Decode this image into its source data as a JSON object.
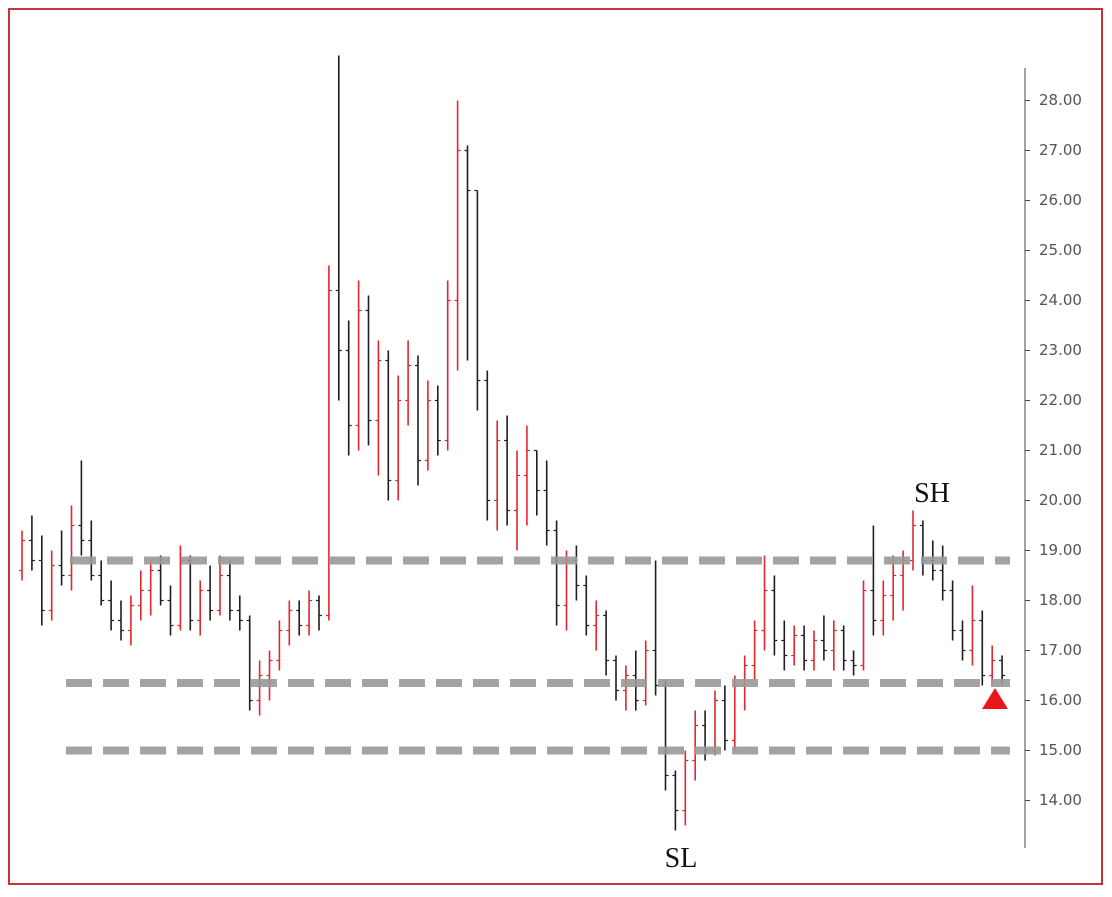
{
  "chart_data": {
    "type": "ohlc",
    "open": [
      18.6,
      19.2,
      18.8,
      17.8,
      18.7,
      18.5,
      19.5,
      19.2,
      18.5,
      18.0,
      17.6,
      17.4,
      17.9,
      18.2,
      18.6,
      18.0,
      17.5,
      18.8,
      17.6,
      18.2,
      17.8,
      18.5,
      17.8,
      17.6,
      16.0,
      16.5,
      16.8,
      17.4,
      17.8,
      17.5,
      18.0,
      17.7,
      24.2,
      23.0,
      21.5,
      23.8,
      21.6,
      22.8,
      20.4,
      22.0,
      22.7,
      20.8,
      22.0,
      21.2,
      24.0,
      27.0,
      26.2,
      22.4,
      20.0,
      21.2,
      19.8,
      20.5,
      21.0,
      20.2,
      19.4,
      17.9,
      18.8,
      18.3,
      17.5,
      17.7,
      16.8,
      16.2,
      16.5,
      16.0,
      17.0,
      16.3,
      14.5,
      13.8,
      14.8,
      15.5,
      15.0,
      16.0,
      15.2,
      16.3,
      16.7,
      17.4,
      18.2,
      17.2,
      16.9,
      17.3,
      16.8,
      17.2,
      17.0,
      17.4,
      16.8,
      16.7,
      18.2,
      17.6,
      18.1,
      18.5,
      18.8,
      19.5,
      18.8,
      18.6,
      18.2,
      17.4,
      17.0,
      17.6,
      16.5,
      16.8
    ],
    "high": [
      19.4,
      19.7,
      19.3,
      19.0,
      19.4,
      19.9,
      20.8,
      19.6,
      18.8,
      18.4,
      18.0,
      18.1,
      18.6,
      18.8,
      18.9,
      18.3,
      19.1,
      18.9,
      18.4,
      18.7,
      18.9,
      18.8,
      18.1,
      17.7,
      16.8,
      17.0,
      17.6,
      18.0,
      18.0,
      18.2,
      18.1,
      24.7,
      28.9,
      23.6,
      24.4,
      24.1,
      23.2,
      23.0,
      22.5,
      23.2,
      22.9,
      22.4,
      22.3,
      24.4,
      28.0,
      27.1,
      26.2,
      22.6,
      21.6,
      21.7,
      21.0,
      21.5,
      21.0,
      20.8,
      19.6,
      19.0,
      19.1,
      18.5,
      18.0,
      17.8,
      16.9,
      16.7,
      17.0,
      17.2,
      18.8,
      16.4,
      14.6,
      15.0,
      15.8,
      15.8,
      16.2,
      16.3,
      16.5,
      16.9,
      17.6,
      18.9,
      18.5,
      17.6,
      17.5,
      17.5,
      17.4,
      17.7,
      17.6,
      17.5,
      17.0,
      18.4,
      19.5,
      18.4,
      18.9,
      19.0,
      19.8,
      19.6,
      19.2,
      19.1,
      18.4,
      17.6,
      18.3,
      17.8,
      17.1,
      16.9
    ],
    "low": [
      18.4,
      18.6,
      17.5,
      17.6,
      18.3,
      18.2,
      18.9,
      18.4,
      17.9,
      17.4,
      17.2,
      17.1,
      17.6,
      17.7,
      17.9,
      17.3,
      17.4,
      17.4,
      17.3,
      17.6,
      17.7,
      17.6,
      17.4,
      15.8,
      15.7,
      16.0,
      16.6,
      17.1,
      17.3,
      17.3,
      17.4,
      17.6,
      22.0,
      20.9,
      21.0,
      21.1,
      20.5,
      20.0,
      20.0,
      21.5,
      20.3,
      20.6,
      20.9,
      21.0,
      22.6,
      22.8,
      21.8,
      19.6,
      19.4,
      19.5,
      19.0,
      19.5,
      19.7,
      19.1,
      17.5,
      17.4,
      18.0,
      17.3,
      17.0,
      16.5,
      16.0,
      15.8,
      15.8,
      15.9,
      16.1,
      14.2,
      13.4,
      13.5,
      14.4,
      14.8,
      14.9,
      15.0,
      15.0,
      15.8,
      16.4,
      17.0,
      16.9,
      16.6,
      16.7,
      16.6,
      16.6,
      16.8,
      16.6,
      16.6,
      16.5,
      16.6,
      17.3,
      17.3,
      17.6,
      17.8,
      18.6,
      18.5,
      18.4,
      18.0,
      17.2,
      16.8,
      16.7,
      16.3,
      16.3,
      16.3
    ],
    "close": [
      19.2,
      18.8,
      17.8,
      18.7,
      18.5,
      19.5,
      19.2,
      18.5,
      18.0,
      17.6,
      17.4,
      17.9,
      18.2,
      18.6,
      18.0,
      17.5,
      18.8,
      17.6,
      18.2,
      17.8,
      18.5,
      17.8,
      17.6,
      16.0,
      16.5,
      16.8,
      17.4,
      17.8,
      17.5,
      18.0,
      17.7,
      24.2,
      23.0,
      21.5,
      23.8,
      21.6,
      22.8,
      20.4,
      22.0,
      22.7,
      20.8,
      22.0,
      21.2,
      24.0,
      27.0,
      26.2,
      22.4,
      20.0,
      21.2,
      19.8,
      20.5,
      21.0,
      20.2,
      19.4,
      17.9,
      18.8,
      18.3,
      17.5,
      17.7,
      16.8,
      16.2,
      16.5,
      16.0,
      17.0,
      16.3,
      14.5,
      13.8,
      14.8,
      15.5,
      15.0,
      16.0,
      15.2,
      16.3,
      16.7,
      17.4,
      18.2,
      17.2,
      16.9,
      17.3,
      16.8,
      17.2,
      17.0,
      17.4,
      16.8,
      16.7,
      18.2,
      17.6,
      18.1,
      18.5,
      18.8,
      19.5,
      18.8,
      18.6,
      18.2,
      17.4,
      17.0,
      17.6,
      16.5,
      16.8,
      16.5
    ],
    "up_color": "#e3262e",
    "down_color": "#1e1e1e",
    "levels": [
      18.8,
      16.35,
      15.0
    ],
    "level_color": "#999999",
    "annotations": [
      {
        "text": "SH"
      },
      {
        "text": "SL"
      }
    ],
    "ylim": [
      13.05,
      28.65
    ],
    "yticks": [
      {
        "value": 14,
        "label": "14.00"
      },
      {
        "value": 15,
        "label": "15.00"
      },
      {
        "value": 16,
        "label": "16.00"
      },
      {
        "value": 17,
        "label": "17.00"
      },
      {
        "value": 18,
        "label": "18.00"
      },
      {
        "value": 19,
        "label": "19.00"
      },
      {
        "value": 20,
        "label": "20.00"
      },
      {
        "value": 21,
        "label": "21.00"
      },
      {
        "value": 22,
        "label": "22.00"
      },
      {
        "value": 23,
        "label": "23.00"
      },
      {
        "value": 24,
        "label": "24.00"
      },
      {
        "value": 25,
        "label": "25.00"
      },
      {
        "value": 26,
        "label": "26.00"
      },
      {
        "value": 27,
        "label": "27.00"
      },
      {
        "value": 28,
        "label": "28.00"
      }
    ]
  }
}
